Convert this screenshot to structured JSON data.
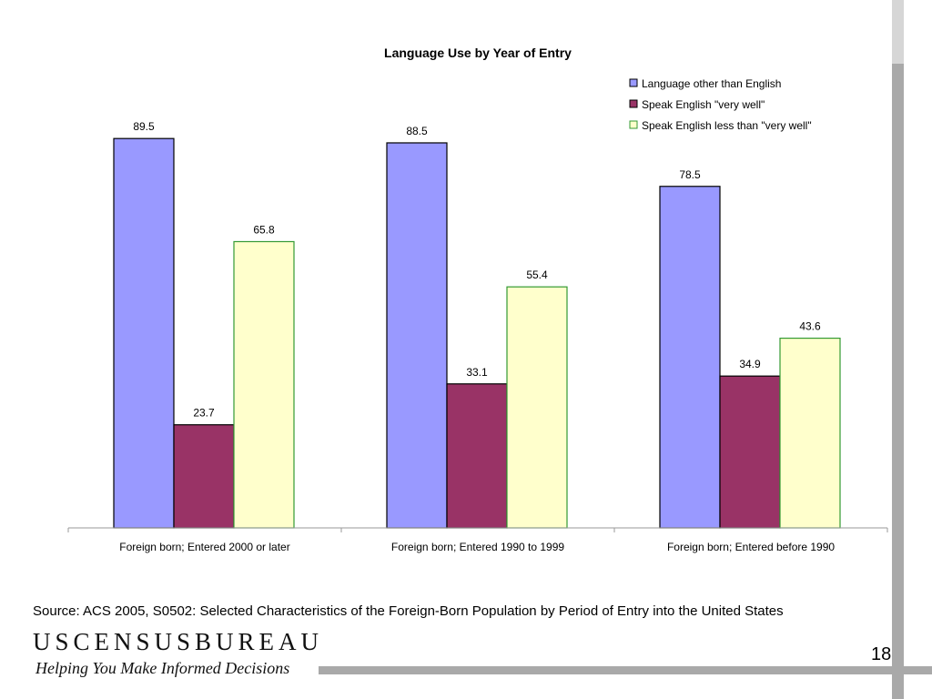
{
  "chart_data": {
    "type": "bar",
    "title": "Language Use by Year of Entry",
    "categories": [
      "Foreign born; Entered 2000 or later",
      "Foreign born; Entered 1990 to 1999",
      "Foreign born; Entered before 1990"
    ],
    "series": [
      {
        "name": "Language other than English",
        "values": [
          89.5,
          88.5,
          78.5
        ],
        "color": "#9999ff",
        "stroke": "#000000"
      },
      {
        "name": "Speak English \"very well\"",
        "values": [
          23.7,
          33.1,
          34.9
        ],
        "color": "#993366",
        "stroke": "#000000"
      },
      {
        "name": "Speak English less than \"very well\"",
        "values": [
          65.8,
          55.4,
          43.6
        ],
        "color": "#ffffcc",
        "stroke": "#339933"
      }
    ],
    "value_labels": [
      [
        "89.5",
        "88.5",
        "78.5"
      ],
      [
        "23.7",
        "33.1",
        "34.9"
      ],
      [
        "65.8",
        "55.4",
        "43.6"
      ]
    ],
    "ylim": [
      0,
      100
    ],
    "grid": false,
    "legend_position": "top-right"
  },
  "footer": {
    "source": "Source:  ACS 2005, S0502: Selected Characteristics of the Foreign-Born Population by Period of Entry into the United States",
    "brand": "USCENSUSBUREAU",
    "tagline": "Helping You Make Informed Decisions",
    "page_number": "18"
  }
}
